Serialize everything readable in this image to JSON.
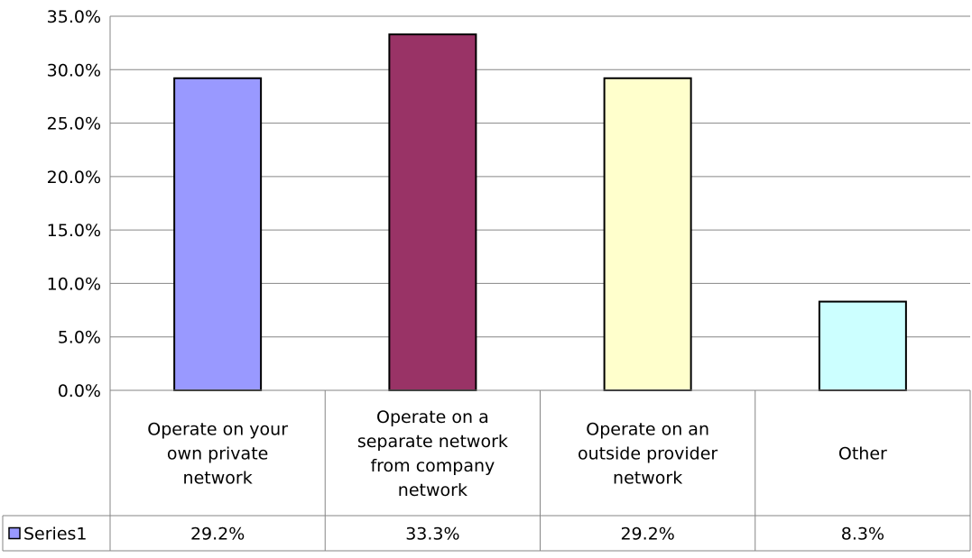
{
  "chart_data": {
    "type": "bar",
    "categories": [
      [
        "Operate on your",
        "own private",
        "network"
      ],
      [
        "Operate on a",
        "separate network",
        "from company",
        "network"
      ],
      [
        "Operate on an",
        "outside provider",
        "network"
      ],
      [
        "Other"
      ]
    ],
    "series": [
      {
        "name": "Series1",
        "values": [
          29.2,
          33.3,
          29.2,
          8.3
        ],
        "value_labels": [
          "29.2%",
          "33.3%",
          "29.2%",
          "8.3%"
        ],
        "colors": [
          "#9999ff",
          "#993366",
          "#ffffcc",
          "#ccffff"
        ]
      }
    ],
    "ylim": [
      0,
      35
    ],
    "yticks": [
      0,
      5,
      10,
      15,
      20,
      25,
      30,
      35
    ],
    "ytick_labels": [
      "0.0%",
      "5.0%",
      "10.0%",
      "15.0%",
      "20.0%",
      "25.0%",
      "30.0%",
      "35.0%"
    ],
    "grid": true,
    "legend": "data-table",
    "data_table": true
  }
}
